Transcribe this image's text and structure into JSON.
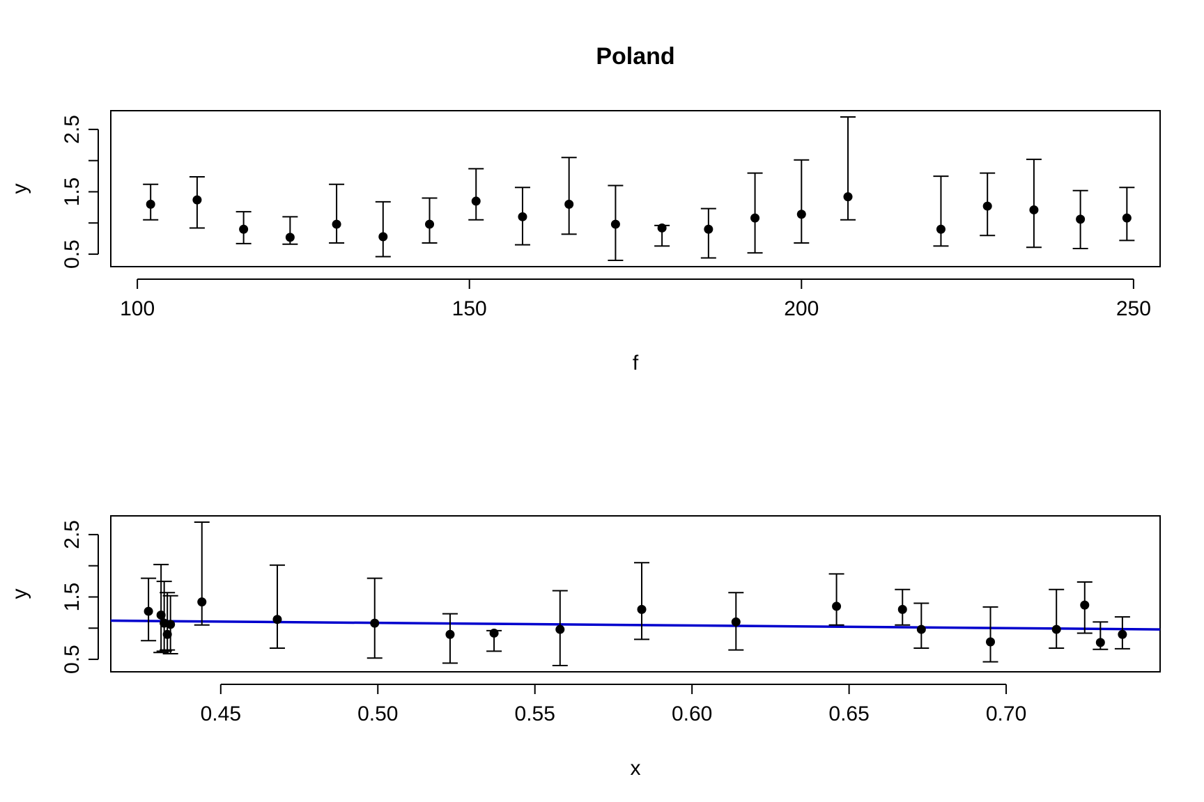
{
  "chart_data": [
    {
      "type": "scatter",
      "title": "Poland",
      "xlabel": "f",
      "ylabel": "y",
      "xlim": [
        96,
        254
      ],
      "ylim": [
        0.3,
        2.8
      ],
      "xticks": [
        100,
        150,
        200,
        250
      ],
      "xtick_labels": [
        "100",
        "150",
        "200",
        "250"
      ],
      "yticks": [
        0.5,
        1.0,
        1.5,
        2.0,
        2.5
      ],
      "ytick_labels": [
        "0.5",
        "",
        "1.5",
        "",
        "2.5"
      ],
      "error_bars": true,
      "grid": false,
      "series": [
        {
          "points": [
            {
              "x": 102,
              "y": 1.3,
              "lo": 1.05,
              "hi": 1.62
            },
            {
              "x": 109,
              "y": 1.37,
              "lo": 0.92,
              "hi": 1.74
            },
            {
              "x": 116,
              "y": 0.9,
              "lo": 0.67,
              "hi": 1.18
            },
            {
              "x": 123,
              "y": 0.77,
              "lo": 0.66,
              "hi": 1.1
            },
            {
              "x": 130,
              "y": 0.98,
              "lo": 0.68,
              "hi": 1.62
            },
            {
              "x": 137,
              "y": 0.78,
              "lo": 0.46,
              "hi": 1.34
            },
            {
              "x": 144,
              "y": 0.98,
              "lo": 0.68,
              "hi": 1.4
            },
            {
              "x": 151,
              "y": 1.35,
              "lo": 1.05,
              "hi": 1.87
            },
            {
              "x": 158,
              "y": 1.1,
              "lo": 0.65,
              "hi": 1.57
            },
            {
              "x": 165,
              "y": 1.3,
              "lo": 0.82,
              "hi": 2.05
            },
            {
              "x": 172,
              "y": 0.98,
              "lo": 0.4,
              "hi": 1.6
            },
            {
              "x": 179,
              "y": 0.92,
              "lo": 0.63,
              "hi": 0.96
            },
            {
              "x": 186,
              "y": 0.9,
              "lo": 0.44,
              "hi": 1.23
            },
            {
              "x": 193,
              "y": 1.08,
              "lo": 0.52,
              "hi": 1.8
            },
            {
              "x": 200,
              "y": 1.14,
              "lo": 0.68,
              "hi": 2.01
            },
            {
              "x": 207,
              "y": 1.42,
              "lo": 1.05,
              "hi": 2.7
            },
            {
              "x": 221,
              "y": 0.9,
              "lo": 0.63,
              "hi": 1.75
            },
            {
              "x": 228,
              "y": 1.27,
              "lo": 0.8,
              "hi": 1.8
            },
            {
              "x": 235,
              "y": 1.21,
              "lo": 0.61,
              "hi": 2.02
            },
            {
              "x": 242,
              "y": 1.06,
              "lo": 0.59,
              "hi": 1.52
            },
            {
              "x": 249,
              "y": 1.08,
              "lo": 0.72,
              "hi": 1.57
            }
          ]
        }
      ]
    },
    {
      "type": "scatter",
      "title": "",
      "xlabel": "x",
      "ylabel": "y",
      "xlim": [
        0.415,
        0.749
      ],
      "ylim": [
        0.3,
        2.8
      ],
      "xticks": [
        0.45,
        0.5,
        0.55,
        0.6,
        0.65,
        0.7
      ],
      "xtick_labels": [
        "0.45",
        "0.50",
        "0.55",
        "0.60",
        "0.65",
        "0.70"
      ],
      "yticks": [
        0.5,
        1.0,
        1.5,
        2.0,
        2.5
      ],
      "ytick_labels": [
        "0.5",
        "",
        "1.5",
        "",
        "2.5"
      ],
      "error_bars": true,
      "grid": false,
      "series": [
        {
          "points": [
            {
              "x": 0.427,
              "y": 1.27,
              "lo": 0.8,
              "hi": 1.8
            },
            {
              "x": 0.431,
              "y": 1.21,
              "lo": 0.61,
              "hi": 2.02
            },
            {
              "x": 0.432,
              "y": 1.08,
              "lo": 0.63,
              "hi": 1.75
            },
            {
              "x": 0.433,
              "y": 0.9,
              "lo": 0.65,
              "hi": 1.57
            },
            {
              "x": 0.434,
              "y": 1.06,
              "lo": 0.59,
              "hi": 1.52
            },
            {
              "x": 0.444,
              "y": 1.42,
              "lo": 1.05,
              "hi": 2.7
            },
            {
              "x": 0.468,
              "y": 1.14,
              "lo": 0.68,
              "hi": 2.01
            },
            {
              "x": 0.499,
              "y": 1.08,
              "lo": 0.52,
              "hi": 1.8
            },
            {
              "x": 0.523,
              "y": 0.9,
              "lo": 0.44,
              "hi": 1.23
            },
            {
              "x": 0.537,
              "y": 0.92,
              "lo": 0.63,
              "hi": 0.96
            },
            {
              "x": 0.558,
              "y": 0.98,
              "lo": 0.4,
              "hi": 1.6
            },
            {
              "x": 0.584,
              "y": 1.3,
              "lo": 0.82,
              "hi": 2.05
            },
            {
              "x": 0.614,
              "y": 1.1,
              "lo": 0.65,
              "hi": 1.57
            },
            {
              "x": 0.646,
              "y": 1.35,
              "lo": 1.05,
              "hi": 1.87
            },
            {
              "x": 0.667,
              "y": 1.3,
              "lo": 1.05,
              "hi": 1.62
            },
            {
              "x": 0.673,
              "y": 0.98,
              "lo": 0.68,
              "hi": 1.4
            },
            {
              "x": 0.695,
              "y": 0.78,
              "lo": 0.46,
              "hi": 1.34
            },
            {
              "x": 0.716,
              "y": 0.98,
              "lo": 0.68,
              "hi": 1.62
            },
            {
              "x": 0.725,
              "y": 1.37,
              "lo": 0.92,
              "hi": 1.74
            },
            {
              "x": 0.73,
              "y": 0.77,
              "lo": 0.66,
              "hi": 1.1
            },
            {
              "x": 0.737,
              "y": 0.9,
              "lo": 0.67,
              "hi": 1.18
            }
          ]
        }
      ],
      "fit_line": {
        "x": [
          0.415,
          0.749
        ],
        "y": [
          1.12,
          0.98
        ],
        "color": "#0000CD"
      }
    }
  ]
}
